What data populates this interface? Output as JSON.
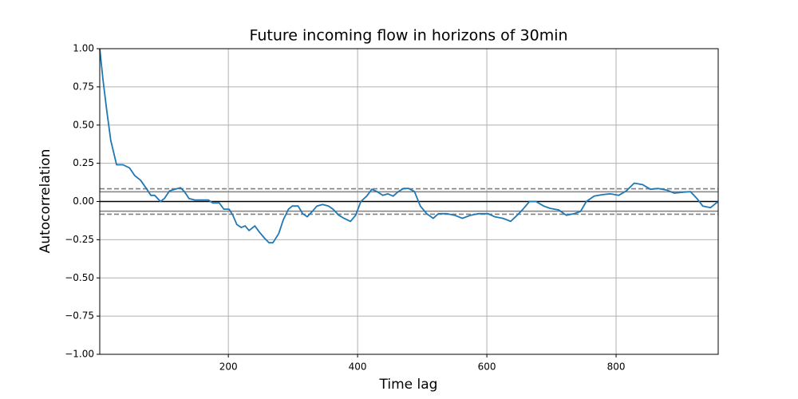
{
  "chart_data": {
    "type": "line",
    "title": "Future incoming flow in horizons of 30min",
    "x_label": "Time lag",
    "y_label": "Autocorrelation",
    "xlim": [
      1,
      958
    ],
    "ylim": [
      -1,
      1
    ],
    "xticks": [
      200,
      400,
      600,
      800
    ],
    "yticks": [
      {
        "value": -1,
        "label": "−1.00"
      },
      {
        "value": -0.75,
        "label": "−0.75"
      },
      {
        "value": -0.5,
        "label": "−0.50"
      },
      {
        "value": -0.25,
        "label": "−0.25"
      },
      {
        "value": 0,
        "label": "0.00"
      },
      {
        "value": 0.25,
        "label": "0.25"
      },
      {
        "value": 0.5,
        "label": "0.50"
      },
      {
        "value": 0.75,
        "label": "0.75"
      },
      {
        "value": 1,
        "label": "1.00"
      }
    ],
    "grid": true,
    "reference_lines": [
      {
        "value": 0.0833,
        "color": "#808080",
        "style": "dashed"
      },
      {
        "value": 0.0633,
        "color": "#808080",
        "style": "solid"
      },
      {
        "value": 0,
        "color": "#000000",
        "style": "solid"
      },
      {
        "value": -0.0633,
        "color": "#808080",
        "style": "solid"
      },
      {
        "value": -0.0833,
        "color": "#808080",
        "style": "dashed"
      }
    ],
    "series": [
      {
        "color": "#1f77b4",
        "x": [
          1,
          6,
          12,
          18,
          27,
          37,
          47,
          55,
          64,
          74,
          80,
          86,
          95,
          101,
          109,
          117,
          126,
          132,
          139,
          148,
          160,
          169,
          176,
          186,
          193,
          201,
          207,
          213,
          220,
          226,
          232,
          241,
          248,
          256,
          263,
          269,
          278,
          285,
          293,
          299,
          308,
          315,
          322,
          330,
          337,
          346,
          355,
          362,
          371,
          379,
          389,
          397,
          405,
          414,
          422,
          430,
          439,
          447,
          455,
          463,
          471,
          479,
          488,
          497,
          507,
          517,
          525,
          538,
          550,
          562,
          575,
          587,
          602,
          612,
          625,
          637,
          647,
          656,
          666,
          676,
          688,
          698,
          711,
          723,
          735,
          745,
          754,
          766,
          779,
          791,
          804,
          816,
          828,
          841,
          853,
          865,
          878,
          890,
          902,
          915,
          925,
          934,
          946,
          958
        ],
        "values": [
          1.0,
          0.8,
          0.59,
          0.4,
          0.24,
          0.24,
          0.22,
          0.17,
          0.14,
          0.08,
          0.04,
          0.04,
          0.0,
          0.02,
          0.07,
          0.08,
          0.09,
          0.065,
          0.02,
          0.01,
          0.01,
          0.01,
          -0.01,
          -0.01,
          -0.05,
          -0.05,
          -0.09,
          -0.15,
          -0.17,
          -0.16,
          -0.19,
          -0.16,
          -0.2,
          -0.24,
          -0.27,
          -0.27,
          -0.21,
          -0.12,
          -0.05,
          -0.03,
          -0.03,
          -0.08,
          -0.1,
          -0.065,
          -0.03,
          -0.02,
          -0.03,
          -0.05,
          -0.09,
          -0.11,
          -0.13,
          -0.09,
          0.0,
          0.035,
          0.08,
          0.065,
          0.04,
          0.05,
          0.035,
          0.065,
          0.085,
          0.085,
          0.065,
          -0.03,
          -0.08,
          -0.11,
          -0.08,
          -0.08,
          -0.09,
          -0.11,
          -0.09,
          -0.08,
          -0.08,
          -0.1,
          -0.11,
          -0.13,
          -0.09,
          -0.05,
          0.0,
          0.0,
          -0.03,
          -0.045,
          -0.055,
          -0.09,
          -0.08,
          -0.065,
          0.0,
          0.035,
          0.045,
          0.05,
          0.04,
          0.07,
          0.12,
          0.11,
          0.08,
          0.085,
          0.075,
          0.055,
          0.06,
          0.065,
          0.02,
          -0.03,
          -0.04,
          0.0
        ]
      }
    ]
  }
}
